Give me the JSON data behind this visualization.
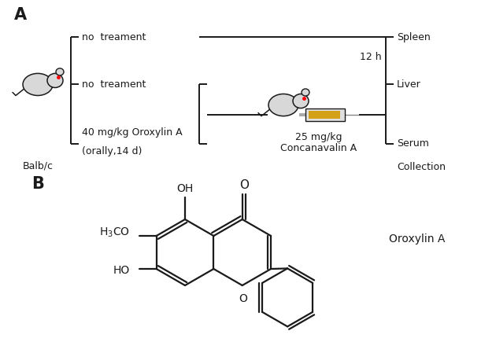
{
  "panel_A_label": "A",
  "panel_B_label": "B",
  "balbc_label": "Balb/c",
  "group1": "no  treament",
  "group2": "no  treament",
  "group3": "40 mg/kg Oroxylin A",
  "group3_sub": "(orally,14 d)",
  "conA_label": "25 mg/kg",
  "conA_label2": "Concanavalin A",
  "time_label": "12 h",
  "spleen": "Spleen",
  "liver": "Liver",
  "serum": "Serum",
  "collection": "Collection",
  "oroxylin_label": "Oroxylin A",
  "bg_color": "#ffffff",
  "line_color": "#1a1a1a",
  "font_size": 10
}
